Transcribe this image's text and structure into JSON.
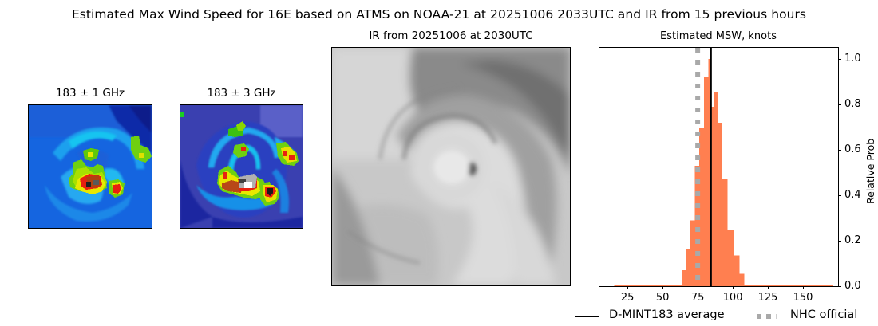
{
  "figure": {
    "suptitle": "Estimated Max Wind Speed for 16E based on ATMS on NOAA-21 at 20251006 2033UTC and IR from 15 previous hours"
  },
  "panels": {
    "mw1": {
      "title": "183 ± 1 GHz"
    },
    "mw2": {
      "title": "183 ± 3 GHz"
    },
    "ir": {
      "title": "IR from 20251006 at 2030UTC"
    },
    "hist": {
      "title": "Estimated MSW, knots"
    }
  },
  "colors": {
    "bars": "#ff7f50",
    "mean_line": "#000000",
    "nhc_line": "#a9a9a9"
  },
  "chart_data": {
    "type": "bar",
    "title": "Estimated MSW, knots",
    "xlabel": "",
    "ylabel": "Relative Prob",
    "xlim": [
      5,
      175
    ],
    "ylim": [
      0,
      1.05
    ],
    "xticks": [
      25,
      50,
      75,
      100,
      125,
      150
    ],
    "yticks": [
      0.0,
      0.2,
      0.4,
      0.6,
      0.8,
      1.0
    ],
    "ytick_labels": [
      "0.0",
      "0.2",
      "0.4",
      "0.6",
      "0.8",
      "1.0"
    ],
    "y_axis_side": "right",
    "grid": false,
    "bin_edges": [
      15.5,
      63.5,
      66.6,
      69.8,
      73.0,
      76.2,
      79.4,
      82.5,
      84.5,
      86.5,
      89.0,
      92.0,
      96.0,
      100.5,
      104.5,
      108.0,
      171.0
    ],
    "values": [
      0.003,
      0.07,
      0.165,
      0.29,
      0.53,
      0.695,
      0.92,
      1.0,
      0.79,
      0.855,
      0.72,
      0.47,
      0.245,
      0.135,
      0.055,
      0.003
    ],
    "mean_line_x": 84.5,
    "nhc_official_x": 75,
    "legend": [
      {
        "label": "D-MINT183 average",
        "style": "solid",
        "color": "#000000"
      },
      {
        "label": "NHC official",
        "style": "dotted",
        "color": "#a9a9a9"
      }
    ],
    "legend_position": "below right"
  }
}
